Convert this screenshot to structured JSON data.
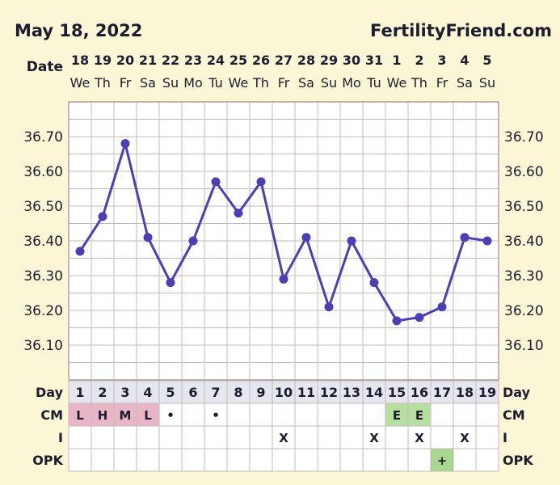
{
  "header": {
    "date": "May 18, 2022",
    "brand": "FertilityFriend.com"
  },
  "chart_data": {
    "type": "line",
    "title": "May 18, 2022",
    "date_label": "Date",
    "dates": [
      "18",
      "19",
      "20",
      "21",
      "22",
      "23",
      "24",
      "25",
      "26",
      "27",
      "28",
      "29",
      "30",
      "31",
      "1",
      "2",
      "3",
      "4",
      "5"
    ],
    "weekdays": [
      "We",
      "Th",
      "Fr",
      "Sa",
      "Su",
      "Mo",
      "Tu",
      "We",
      "Th",
      "Fr",
      "Sa",
      "Su",
      "Mo",
      "Tu",
      "We",
      "Th",
      "Fr",
      "Sa",
      "Su"
    ],
    "x": [
      1,
      2,
      3,
      4,
      5,
      6,
      7,
      8,
      9,
      10,
      11,
      12,
      13,
      14,
      15,
      16,
      17,
      18,
      19
    ],
    "values": [
      36.37,
      36.47,
      36.68,
      36.41,
      36.28,
      36.4,
      36.57,
      36.48,
      36.57,
      36.29,
      36.41,
      36.21,
      36.4,
      36.28,
      36.17,
      36.18,
      36.21,
      36.41,
      36.4
    ],
    "y_ticks": [
      "36.70",
      "36.60",
      "36.50",
      "36.40",
      "36.30",
      "36.20",
      "36.10"
    ],
    "y_tick_values": [
      36.7,
      36.6,
      36.5,
      36.4,
      36.3,
      36.2,
      36.1
    ],
    "ylim": [
      36.0,
      36.8
    ],
    "grid": true,
    "line_color": "#4a3fb5",
    "rows": {
      "day_label": "Day",
      "cm_label": "CM",
      "i_label": "I",
      "opk_label": "OPK",
      "cm": [
        "L",
        "H",
        "M",
        "L",
        "•",
        "",
        "•",
        "",
        "",
        "",
        "",
        "",
        "",
        "",
        "E",
        "E",
        "",
        "",
        ""
      ],
      "intercourse": [
        "",
        "",
        "",
        "",
        "",
        "",
        "",
        "",
        "",
        "X",
        "",
        "",
        "",
        "X",
        "",
        "X",
        "",
        "X",
        ""
      ],
      "opk": [
        "",
        "",
        "",
        "",
        "",
        "",
        "",
        "",
        "",
        "",
        "",
        "",
        "",
        "",
        "",
        "",
        "+",
        "",
        ""
      ]
    },
    "colors": {
      "cm_pink": "#e8b6c6",
      "cm_green": "#b6e0a0",
      "opk_green": "#a8d890",
      "grid": "#c9b8b8",
      "header_row": "#e6e6ee"
    }
  }
}
